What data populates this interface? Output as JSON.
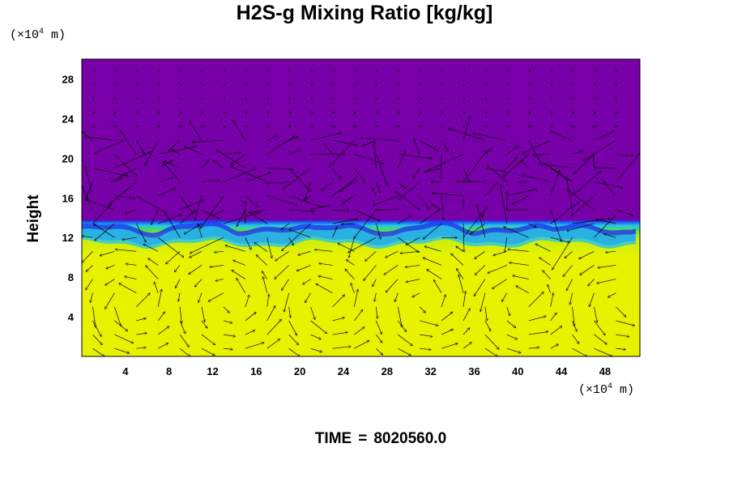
{
  "chart_data": {
    "type": "heatmap",
    "title": "H2S-g Mixing Ratio [kg/kg]",
    "ylabel": "Height",
    "xlabel": "",
    "x_unit": {
      "prefix": "(×10",
      "exp": "4",
      "suffix": " m)"
    },
    "y_unit": {
      "prefix": "(×10",
      "exp": "4",
      "suffix": " m)"
    },
    "xlim": [
      0,
      51.2
    ],
    "ylim": [
      0,
      30
    ],
    "x_ticks": [
      4,
      8,
      12,
      16,
      20,
      24,
      28,
      32,
      36,
      40,
      44,
      48
    ],
    "y_ticks": [
      4,
      8,
      12,
      16,
      20,
      24,
      28
    ],
    "field": {
      "description_levels": [
        "purple",
        "blue",
        "cyan",
        "green",
        "yellow"
      ],
      "upper_color": "#7800a8",
      "lower_color": "#e6f200",
      "interface_height": 12
    },
    "vectors": "wind field arrows overlaid",
    "time_label": "TIME",
    "time_eq": "=",
    "time_value": "8020560.0"
  },
  "colors": {
    "purple": "#7800a8",
    "blue": "#1e3cf0",
    "cyan": "#28c8e6",
    "green": "#50dc50",
    "yellow": "#e6f200"
  }
}
